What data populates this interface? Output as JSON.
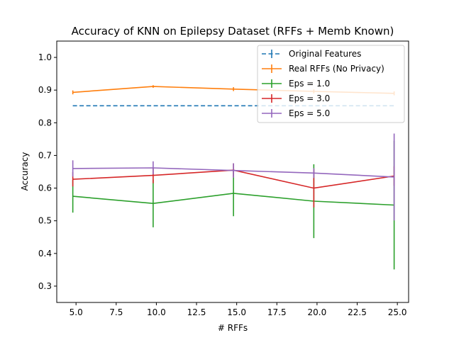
{
  "chart_data": {
    "type": "line",
    "title": "Accuracy of KNN on Epilepsy Dataset (RFFs + Memb Known)",
    "xlabel": "# RFFs",
    "ylabel": "Accuracy",
    "xlim": [
      3.8,
      25.7
    ],
    "ylim": [
      0.25,
      1.05
    ],
    "xticks": [
      5.0,
      7.5,
      10.0,
      12.5,
      15.0,
      17.5,
      20.0,
      22.5,
      25.0
    ],
    "xtick_labels": [
      "5.0",
      "7.5",
      "10.0",
      "12.5",
      "15.0",
      "17.5",
      "20.0",
      "22.5",
      "25.0"
    ],
    "yticks": [
      0.3,
      0.4,
      0.5,
      0.6,
      0.7,
      0.8,
      0.9,
      1.0
    ],
    "ytick_labels": [
      "0.3",
      "0.4",
      "0.5",
      "0.6",
      "0.7",
      "0.8",
      "0.9",
      "1.0"
    ],
    "grid": false,
    "legend_position": "top-right",
    "x": [
      4.8,
      9.8,
      14.8,
      19.8,
      24.8
    ],
    "series": [
      {
        "name": "Original Features",
        "color": "#1f77b4",
        "dashed": true,
        "values": [
          0.852,
          0.852,
          0.852,
          0.852,
          0.852
        ],
        "errors": [
          0.0,
          0.0,
          0.0,
          0.0,
          0.0
        ]
      },
      {
        "name": "Real RFFs (No Privacy)",
        "color": "#ff7f0e",
        "dashed": false,
        "values": [
          0.893,
          0.911,
          0.903,
          0.896,
          0.89
        ],
        "errors": [
          0.006,
          0.004,
          0.006,
          0.006,
          0.006
        ]
      },
      {
        "name": "Eps = 1.0",
        "color": "#2ca02c",
        "dashed": false,
        "values": [
          0.575,
          0.553,
          0.584,
          0.56,
          0.548
        ],
        "errors": [
          0.05,
          0.073,
          0.07,
          0.113,
          0.197
        ]
      },
      {
        "name": "Eps = 3.0",
        "color": "#d62728",
        "dashed": false,
        "values": [
          0.627,
          0.639,
          0.655,
          0.6,
          0.637
        ],
        "errors": [
          0.022,
          0.024,
          0.021,
          0.059,
          0.03
        ]
      },
      {
        "name": "Eps = 5.0",
        "color": "#9467bd",
        "dashed": false,
        "values": [
          0.66,
          0.662,
          0.654,
          0.646,
          0.634
        ],
        "errors": [
          0.025,
          0.02,
          0.022,
          0.015,
          0.133
        ]
      }
    ]
  }
}
